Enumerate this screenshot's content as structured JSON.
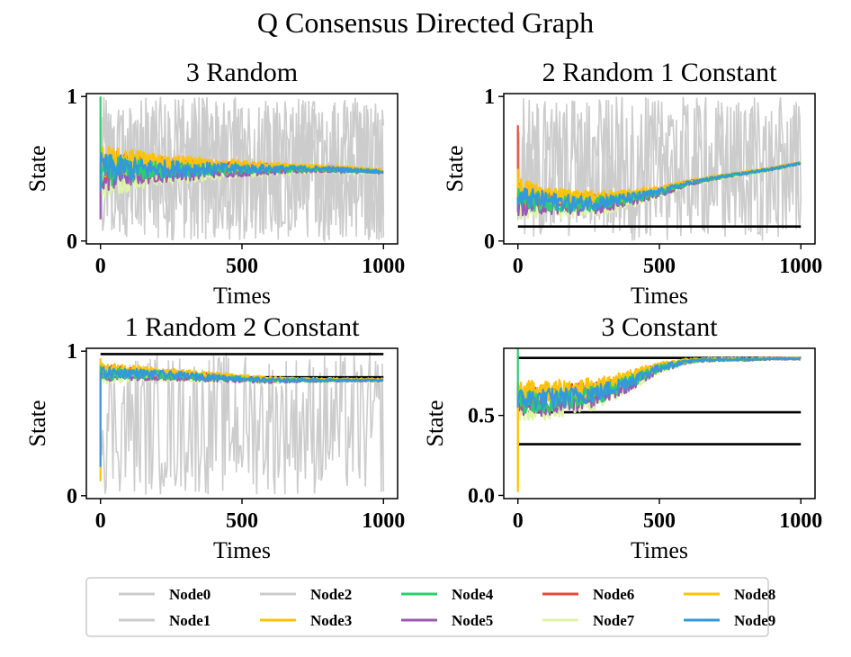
{
  "figure": {
    "title": "Q Consensus Directed Graph"
  },
  "legend": {
    "placement": "bottom-center",
    "entries": [
      {
        "name": "Node0",
        "color": "#cccccc"
      },
      {
        "name": "Node1",
        "color": "#cccccc"
      },
      {
        "name": "Node2",
        "color": "#cccccc"
      },
      {
        "name": "Node3",
        "color": "#ffc20a"
      },
      {
        "name": "Node4",
        "color": "#2ecc71"
      },
      {
        "name": "Node5",
        "color": "#9b59b6"
      },
      {
        "name": "Node6",
        "color": "#e74c3c"
      },
      {
        "name": "Node7",
        "color": "#ddf5a5"
      },
      {
        "name": "Node8",
        "color": "#ffc20a"
      },
      {
        "name": "Node9",
        "color": "#3498db"
      }
    ]
  },
  "chart_data": [
    {
      "type": "line",
      "title": "3 Random",
      "xlabel": "Times",
      "ylabel": "State",
      "xlim": [
        -50,
        1050
      ],
      "ylim": [
        -0.02,
        1.02
      ],
      "xticks": [
        0,
        500,
        1000
      ],
      "xtick_labels": [
        "0",
        "500",
        "1000"
      ],
      "yticks": [
        0,
        1
      ],
      "ytick_labels": [
        "0",
        "1"
      ],
      "constant_levels": [],
      "random_band": [
        0.0,
        1.0
      ],
      "initial_values": [
        0.5,
        0.6,
        0.55,
        0.4,
        1.0,
        0.15,
        0.5,
        0.45,
        0.55,
        0.35
      ],
      "consensus": [
        [
          0,
          0.5
        ],
        [
          100,
          0.5
        ],
        [
          200,
          0.5
        ],
        [
          300,
          0.5
        ],
        [
          400,
          0.5
        ],
        [
          500,
          0.5
        ],
        [
          600,
          0.5
        ],
        [
          700,
          0.5
        ],
        [
          800,
          0.5
        ],
        [
          900,
          0.49
        ],
        [
          1000,
          0.48
        ]
      ],
      "spread": [
        [
          0,
          0.16
        ],
        [
          100,
          0.12
        ],
        [
          200,
          0.09
        ],
        [
          300,
          0.08
        ],
        [
          400,
          0.06
        ],
        [
          500,
          0.05
        ],
        [
          600,
          0.04
        ],
        [
          700,
          0.03
        ],
        [
          800,
          0.025
        ],
        [
          900,
          0.02
        ],
        [
          1000,
          0.015
        ]
      ]
    },
    {
      "type": "line",
      "title": "2 Random 1 Constant",
      "xlabel": "Times",
      "ylabel": "State",
      "xlim": [
        -50,
        1050
      ],
      "ylim": [
        -0.02,
        1.02
      ],
      "xticks": [
        0,
        500,
        1000
      ],
      "xtick_labels": [
        "0",
        "500",
        "1000"
      ],
      "yticks": [
        0,
        1
      ],
      "ytick_labels": [
        "0",
        "1"
      ],
      "constant_levels": [
        0.1
      ],
      "random_band": [
        0.0,
        1.0
      ],
      "initial_values": [
        0.5,
        0.6,
        0.55,
        0.5,
        0.3,
        0.2,
        0.8,
        0.4,
        0.45,
        0.25
      ],
      "consensus": [
        [
          0,
          0.3
        ],
        [
          100,
          0.28
        ],
        [
          200,
          0.26
        ],
        [
          300,
          0.27
        ],
        [
          400,
          0.3
        ],
        [
          500,
          0.34
        ],
        [
          600,
          0.4
        ],
        [
          700,
          0.44
        ],
        [
          800,
          0.47
        ],
        [
          900,
          0.5
        ],
        [
          1000,
          0.54
        ]
      ],
      "spread": [
        [
          0,
          0.12
        ],
        [
          100,
          0.09
        ],
        [
          200,
          0.08
        ],
        [
          300,
          0.07
        ],
        [
          400,
          0.05
        ],
        [
          500,
          0.035
        ],
        [
          600,
          0.02
        ],
        [
          700,
          0.015
        ],
        [
          800,
          0.012
        ],
        [
          900,
          0.01
        ],
        [
          1000,
          0.01
        ]
      ]
    },
    {
      "type": "line",
      "title": "1 Random 2 Constant",
      "xlabel": "Times",
      "ylabel": "State",
      "xlim": [
        -50,
        1050
      ],
      "ylim": [
        -0.02,
        1.02
      ],
      "xticks": [
        0,
        500,
        1000
      ],
      "xtick_labels": [
        "0",
        "500",
        "1000"
      ],
      "yticks": [
        0,
        1
      ],
      "ytick_labels": [
        "0",
        "1"
      ],
      "constant_levels": [
        0.98,
        0.82
      ],
      "random_band": [
        0.0,
        1.0
      ],
      "initial_values": [
        0.2,
        0.4,
        0.9,
        0.1,
        0.9,
        0.85,
        0.9,
        0.6,
        0.95,
        0.2
      ],
      "consensus": [
        [
          0,
          0.85
        ],
        [
          100,
          0.85
        ],
        [
          200,
          0.84
        ],
        [
          300,
          0.83
        ],
        [
          400,
          0.82
        ],
        [
          500,
          0.81
        ],
        [
          600,
          0.8
        ],
        [
          700,
          0.8
        ],
        [
          800,
          0.8
        ],
        [
          900,
          0.8
        ],
        [
          1000,
          0.8
        ]
      ],
      "spread": [
        [
          0,
          0.06
        ],
        [
          100,
          0.05
        ],
        [
          200,
          0.04
        ],
        [
          300,
          0.035
        ],
        [
          400,
          0.03
        ],
        [
          500,
          0.025
        ],
        [
          600,
          0.02
        ],
        [
          700,
          0.015
        ],
        [
          800,
          0.012
        ],
        [
          900,
          0.01
        ],
        [
          1000,
          0.01
        ]
      ]
    },
    {
      "type": "line",
      "title": "3 Constant",
      "xlabel": "Times",
      "ylabel": "State",
      "xlim": [
        -50,
        1050
      ],
      "ylim": [
        -0.02,
        0.92
      ],
      "xticks": [
        0,
        500,
        1000
      ],
      "xtick_labels": [
        "0",
        "500",
        "1000"
      ],
      "yticks": [
        0.0,
        0.5
      ],
      "ytick_labels": [
        "0.0",
        "0.5"
      ],
      "constant_levels": [
        0.86,
        0.52,
        0.32
      ],
      "random_band": [],
      "initial_values": [
        0.5,
        0.55,
        0.6,
        0.05,
        0.93,
        0.7,
        0.62,
        0.1,
        0.02,
        0.55
      ],
      "consensus": [
        [
          0,
          0.6
        ],
        [
          100,
          0.6
        ],
        [
          200,
          0.62
        ],
        [
          300,
          0.65
        ],
        [
          400,
          0.72
        ],
        [
          500,
          0.8
        ],
        [
          600,
          0.84
        ],
        [
          700,
          0.85
        ],
        [
          800,
          0.85
        ],
        [
          900,
          0.855
        ],
        [
          1000,
          0.855
        ]
      ],
      "spread": [
        [
          0,
          0.1
        ],
        [
          100,
          0.1
        ],
        [
          200,
          0.09
        ],
        [
          300,
          0.08
        ],
        [
          400,
          0.06
        ],
        [
          500,
          0.03
        ],
        [
          600,
          0.015
        ],
        [
          700,
          0.01
        ],
        [
          800,
          0.008
        ],
        [
          900,
          0.006
        ],
        [
          1000,
          0.006
        ]
      ]
    }
  ]
}
